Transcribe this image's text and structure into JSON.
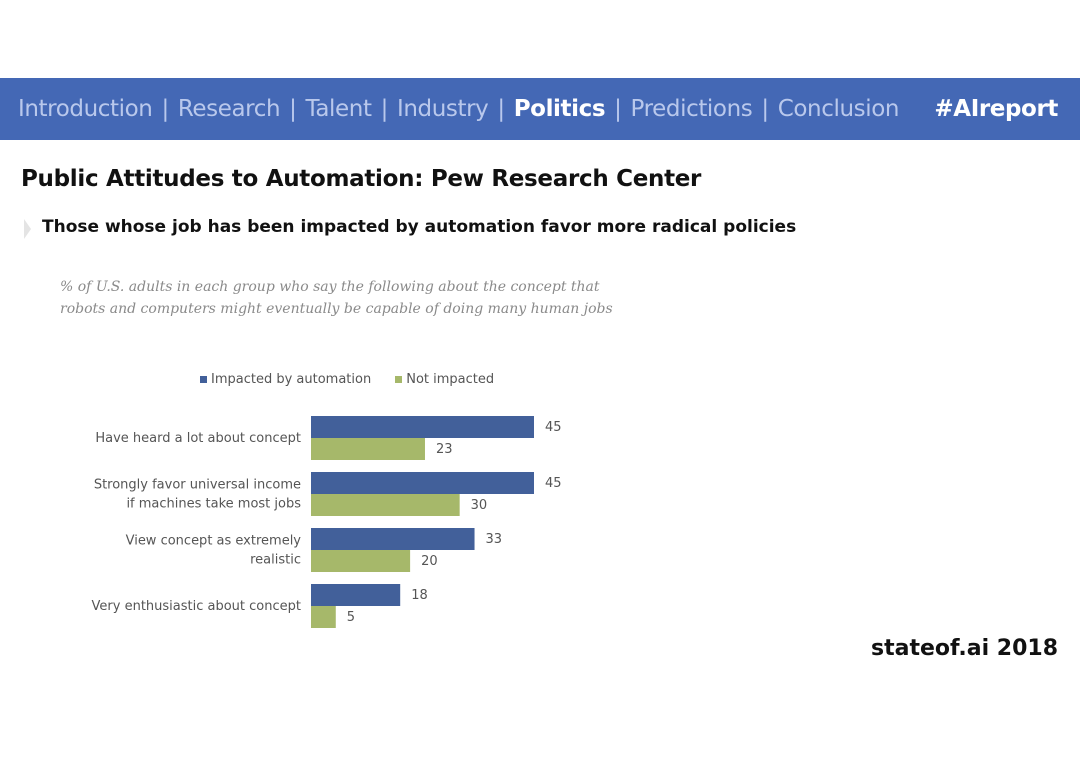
{
  "nav": {
    "items": [
      {
        "label": "Introduction",
        "active": false
      },
      {
        "label": "Research",
        "active": false
      },
      {
        "label": "Talent",
        "active": false
      },
      {
        "label": "Industry",
        "active": false
      },
      {
        "label": "Politics",
        "active": true
      },
      {
        "label": "Predictions",
        "active": false
      },
      {
        "label": "Conclusion",
        "active": false
      }
    ],
    "separator": "|",
    "hashtag": "#AIreport"
  },
  "slide": {
    "title": "Public Attitudes to Automation: Pew Research Center",
    "subtitle": "Those whose job has been impacted by automation favor more radical policies",
    "bullet_icon": "chevron-bullet-icon",
    "footer": "stateof.ai 2018"
  },
  "colors": {
    "nav_background": "#4468b5",
    "nav_inactive_text": "#b9c8ec",
    "impacted": "#42609a",
    "not_impacted": "#a6b86a"
  },
  "chart_data": {
    "type": "bar",
    "orientation": "horizontal",
    "note": "% of U.S. adults in each group who say the following about the concept that robots and computers might eventually be capable of doing many human jobs",
    "categories": [
      [
        "Have heard a lot about concept"
      ],
      [
        "Strongly favor universal income",
        "if machines take most jobs"
      ],
      [
        "View concept as extremely",
        "realistic"
      ],
      [
        "Very enthusiastic about concept"
      ]
    ],
    "series": [
      {
        "name": "Impacted by automation",
        "values": [
          45,
          45,
          33,
          18
        ],
        "color": "#42609a"
      },
      {
        "name": "Not impacted",
        "values": [
          23,
          30,
          20,
          5
        ],
        "color": "#a6b86a"
      }
    ],
    "legend_position": "top",
    "grid": false,
    "xlim": [
      0,
      45
    ]
  }
}
